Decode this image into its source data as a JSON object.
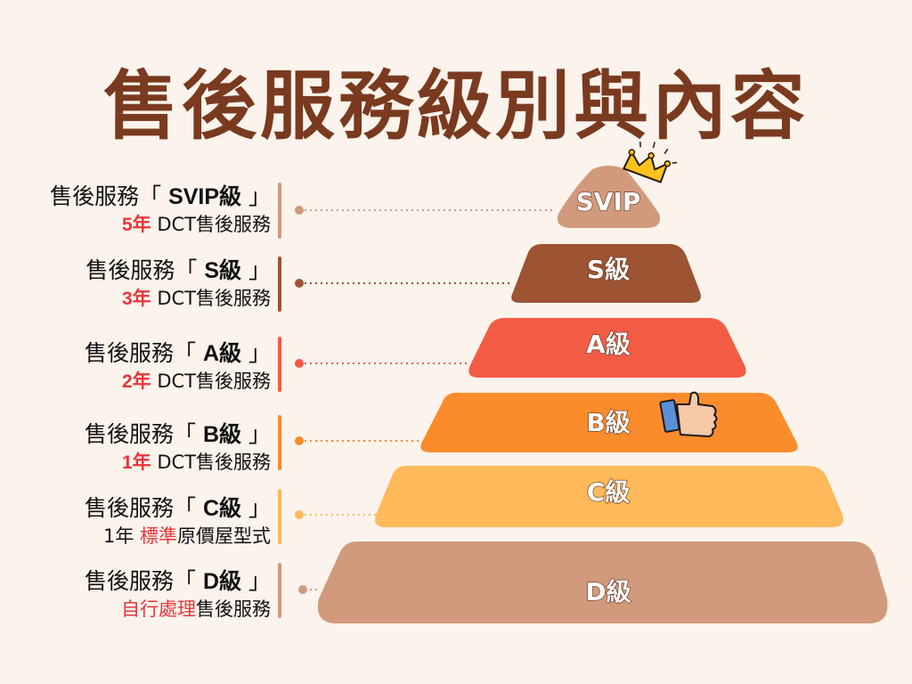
{
  "title": "售後服務級別與內容",
  "levels": [
    {
      "key": "svip",
      "label": "SVIP",
      "heading_prefix": "售後服務「 ",
      "heading_level": "SVIP級",
      "heading_suffix": " 」",
      "sub_highlight": "5年",
      "sub_rest": " DCT售後服務",
      "color": "#d29a7c"
    },
    {
      "key": "s",
      "label": "S級",
      "heading_prefix": "售後服務「 ",
      "heading_level": "S級",
      "heading_suffix": " 」",
      "sub_highlight": "3年",
      "sub_rest": " DCT售後服務",
      "color": "#9c5432"
    },
    {
      "key": "a",
      "label": "A級",
      "heading_prefix": "售後服務「 ",
      "heading_level": "A級",
      "heading_suffix": " 」",
      "sub_highlight": "2年",
      "sub_rest": " DCT售後服務",
      "color": "#f25c45"
    },
    {
      "key": "b",
      "label": "B級",
      "heading_prefix": "售後服務「 ",
      "heading_level": "B級",
      "heading_suffix": " 」",
      "sub_highlight": "1年",
      "sub_rest": " DCT售後服務",
      "color": "#fb8c2b"
    },
    {
      "key": "c",
      "label": "C級",
      "heading_prefix": "售後服務「 ",
      "heading_level": "C級",
      "heading_suffix": " 」",
      "sub_pre": "1年 ",
      "sub_highlight": "標準",
      "sub_rest": "原價屋型式",
      "color": "#fdb95a"
    },
    {
      "key": "d",
      "label": "D級",
      "heading_prefix": "售後服務「 ",
      "heading_level": "D級",
      "heading_suffix": " 」",
      "sub_highlight": "自行處理",
      "sub_rest": "售後服務",
      "color": "#d29a7c"
    }
  ],
  "icons": {
    "top": "crown-icon",
    "b_level": "thumbs-up-icon"
  }
}
